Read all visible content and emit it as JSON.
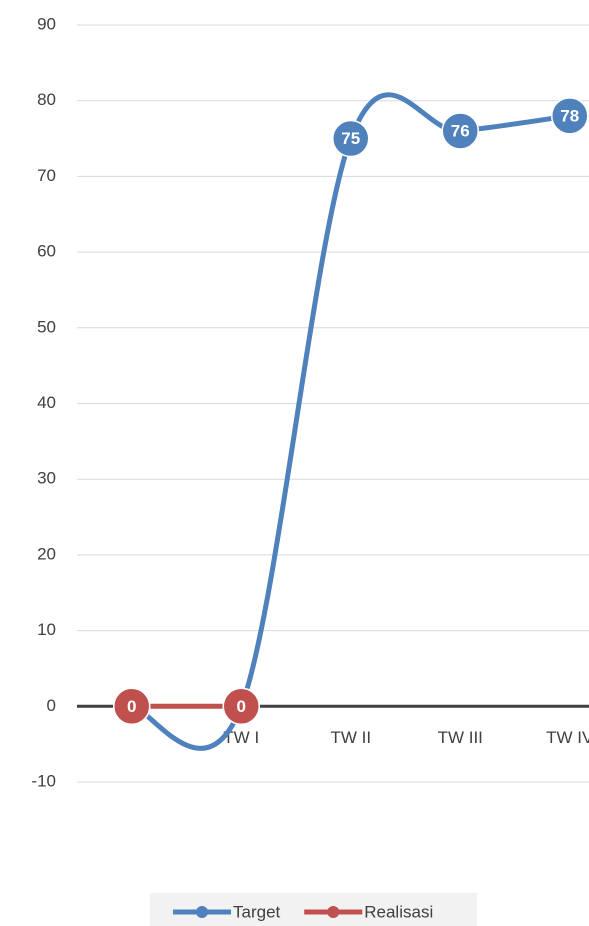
{
  "chart_data": {
    "type": "line",
    "categories": [
      null,
      "TW I",
      "TW II",
      "TW III",
      "TW IV"
    ],
    "series": [
      {
        "name": "Target",
        "color": "#4f81bd",
        "values": [
          0,
          0,
          75,
          76,
          78
        ]
      },
      {
        "name": "Realisasi",
        "color": "#c0504d",
        "values": [
          0,
          0,
          null,
          null,
          null
        ]
      }
    ],
    "ylim": [
      -10,
      90
    ],
    "yticks": [
      -10,
      0,
      10,
      20,
      30,
      40,
      50,
      60,
      70,
      80,
      90
    ],
    "grid": true,
    "legend": "bottom",
    "smooth": true,
    "data_labels": true
  }
}
